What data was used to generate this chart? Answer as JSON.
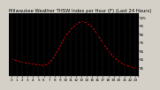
{
  "title": "Milwaukee Weather THSW Index per Hour (F) (Last 24 Hours)",
  "x_values": [
    0,
    1,
    2,
    3,
    4,
    5,
    6,
    7,
    8,
    9,
    10,
    11,
    12,
    13,
    14,
    15,
    16,
    17,
    18,
    19,
    20,
    21,
    22,
    23
  ],
  "y_values": [
    55,
    53,
    51,
    50,
    49,
    48,
    47,
    50,
    58,
    70,
    82,
    90,
    96,
    100,
    98,
    93,
    84,
    74,
    65,
    57,
    52,
    48,
    46,
    44
  ],
  "line_color": "#dd0000",
  "marker_color": "#000000",
  "bg_color": "#d4d0c8",
  "plot_bg_color": "#000000",
  "grid_color": "#555555",
  "title_fontsize": 3.8,
  "tick_fontsize": 3.0,
  "ylim": [
    35,
    110
  ],
  "xlim": [
    -0.5,
    23.5
  ],
  "yticks": [
    45,
    55,
    65,
    75,
    85,
    95,
    105
  ],
  "ytick_labels": [
    "45",
    "55",
    "65",
    "75",
    "85",
    "95",
    "105"
  ],
  "xtick_labels": [
    "0",
    "1",
    "2",
    "3",
    "4",
    "5",
    "6",
    "7",
    "8",
    "9",
    "10",
    "11",
    "12",
    "13",
    "14",
    "15",
    "16",
    "17",
    "18",
    "19",
    "20",
    "21",
    "22",
    "23"
  ]
}
